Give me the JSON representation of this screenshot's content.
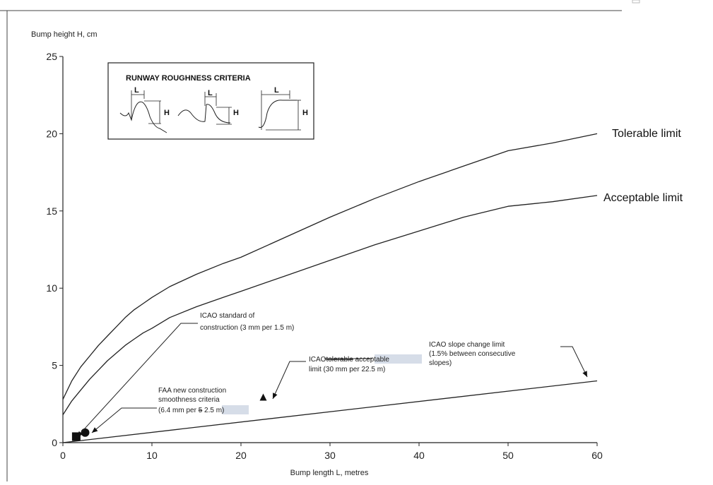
{
  "chart_data": {
    "type": "line",
    "xlabel": "Bump length L, metres",
    "ylabel": "Bump height H, cm",
    "xlim": [
      0,
      60
    ],
    "ylim": [
      0,
      25
    ],
    "xticks": [
      "0",
      "10",
      "20",
      "30",
      "40",
      "50",
      "60"
    ],
    "yticks": [
      "0",
      "5",
      "10",
      "15",
      "20",
      "25"
    ],
    "grid": false,
    "series": [
      {
        "name": "Tolerable limit",
        "x": [
          0,
          1,
          2,
          3,
          4,
          5,
          6,
          7,
          8,
          9,
          10,
          12,
          15,
          18,
          20,
          25,
          30,
          35,
          40,
          45,
          50,
          55,
          60
        ],
        "y": [
          2.8,
          4.0,
          4.9,
          5.6,
          6.3,
          6.9,
          7.5,
          8.1,
          8.6,
          9.0,
          9.4,
          10.1,
          10.9,
          11.6,
          12.0,
          13.3,
          14.6,
          15.8,
          16.9,
          17.9,
          18.9,
          19.4,
          20.0
        ]
      },
      {
        "name": "Acceptable limit",
        "x": [
          0,
          1,
          2,
          3,
          4,
          5,
          6,
          7,
          8,
          9,
          10,
          12,
          15,
          18,
          20,
          25,
          30,
          35,
          40,
          45,
          50,
          55,
          60
        ],
        "y": [
          1.8,
          2.7,
          3.4,
          4.1,
          4.7,
          5.3,
          5.8,
          6.3,
          6.7,
          7.1,
          7.4,
          8.1,
          8.8,
          9.4,
          9.8,
          10.8,
          11.8,
          12.8,
          13.7,
          14.6,
          15.3,
          15.6,
          16.0
        ]
      },
      {
        "name": "ICAO slope change limit",
        "x": [
          0,
          60
        ],
        "y": [
          0,
          4.0
        ]
      }
    ],
    "points": [
      {
        "shape": "square",
        "x": 1.5,
        "y": 0.3
      },
      {
        "shape": "circle",
        "x": 2.5,
        "y": 0.65
      },
      {
        "shape": "triangle",
        "x": 22.5,
        "y": 2.9
      }
    ],
    "annotations": [
      {
        "lines": [
          "ICAO standard of",
          "construction (3 mm per 1.5 m)"
        ]
      },
      {
        "lines": [
          "ICAO slope change limit",
          "(1.5% between consecutive",
          "slopes)"
        ]
      },
      {
        "lines": [
          "limit (30 mm per 22.5 m)"
        ],
        "prefix": "ICAO",
        "struck": "tolerable",
        "highlight": "acceptable"
      },
      {
        "lines": [
          "FAA new construction",
          "smoothness criteria"
        ],
        "tail_prefix": "(6.4 mm per",
        "tail_struck": "5",
        "tail_highlight": "2.5 m)"
      }
    ],
    "inset": {
      "title": "RUNWAY ROUGHNESS CRITERIA",
      "letter_l": "L",
      "letter_h": "H"
    }
  }
}
